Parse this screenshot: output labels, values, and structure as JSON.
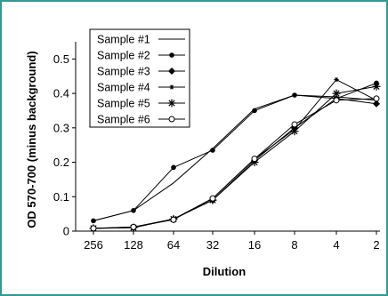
{
  "chart_data": {
    "type": "line",
    "xlabel": "Dilution",
    "ylabel": "OD 570-700 (minus background)",
    "categories": [
      "256",
      "128",
      "64",
      "32",
      "16",
      "8",
      "4",
      "2"
    ],
    "yticks": [
      "0",
      "0.1",
      "0.2",
      "0.3",
      "0.4",
      "0.5"
    ],
    "ylim": [
      0,
      0.55
    ],
    "grid": false,
    "legend_position": "top-left",
    "series": [
      {
        "name": "Sample #1",
        "marker": "none",
        "values": [
          0.03,
          0.06,
          0.14,
          0.24,
          0.355,
          0.395,
          0.39,
          0.38
        ]
      },
      {
        "name": "Sample #2",
        "marker": "dot",
        "values": [
          0.03,
          0.06,
          0.185,
          0.235,
          0.35,
          0.395,
          0.385,
          0.43
        ]
      },
      {
        "name": "Sample #3",
        "marker": "diamond",
        "values": [
          0.008,
          0.01,
          0.035,
          0.09,
          0.205,
          0.3,
          0.385,
          0.37
        ]
      },
      {
        "name": "Sample #4",
        "marker": "small-star",
        "values": [
          0.008,
          0.012,
          0.035,
          0.095,
          0.21,
          0.295,
          0.44,
          0.38
        ]
      },
      {
        "name": "Sample #5",
        "marker": "asterisk",
        "values": [
          0.008,
          0.01,
          0.035,
          0.09,
          0.2,
          0.29,
          0.4,
          0.42
        ]
      },
      {
        "name": "Sample #6",
        "marker": "open-circle",
        "values": [
          0.008,
          0.012,
          0.033,
          0.095,
          0.21,
          0.31,
          0.38,
          0.385
        ]
      }
    ]
  },
  "colors": {
    "frame": "#2f9a91",
    "lines": "#000000"
  }
}
